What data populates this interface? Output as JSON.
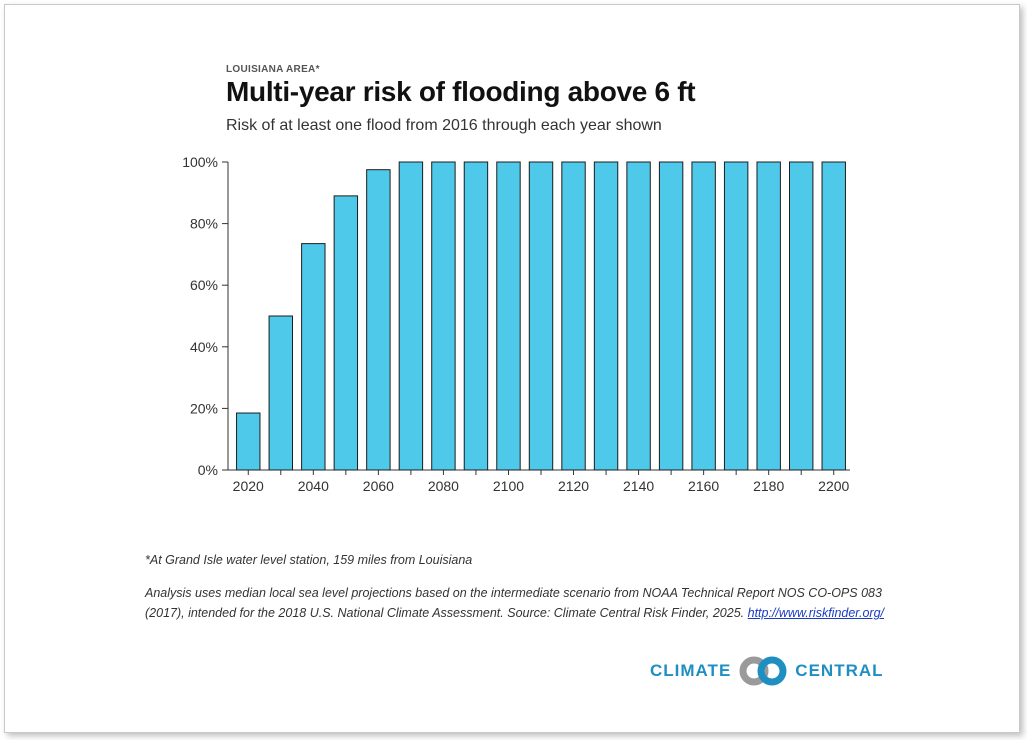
{
  "header": {
    "kicker": "LOUISIANA AREA*",
    "title": "Multi-year risk of flooding above 6 ft",
    "subtitle": "Risk of at least one flood from 2016 through each year shown"
  },
  "chart_data": {
    "type": "bar",
    "title": "Multi-year risk of flooding above 6 ft",
    "subtitle": "Risk of at least one flood from 2016 through each year shown",
    "xlabel": "",
    "ylabel": "",
    "categories": [
      2020,
      2030,
      2040,
      2050,
      2060,
      2070,
      2080,
      2090,
      2100,
      2110,
      2120,
      2130,
      2140,
      2150,
      2160,
      2170,
      2180,
      2190,
      2200
    ],
    "values": [
      18.5,
      50,
      73.5,
      89,
      97.5,
      100,
      100,
      100,
      100,
      100,
      100,
      100,
      100,
      100,
      100,
      100,
      100,
      100,
      100
    ],
    "unit": "%",
    "ylim": [
      0,
      100
    ],
    "yticks": [
      "0%",
      "20%",
      "40%",
      "60%",
      "80%",
      "100%"
    ],
    "xtick_labels": [
      "2020",
      "2040",
      "2060",
      "2080",
      "2100",
      "2120",
      "2140",
      "2160",
      "2180",
      "2200"
    ],
    "bar_color": "#4ec9ea",
    "bar_stroke": "#1c1c1c",
    "grid": false,
    "legend": "none"
  },
  "notes": {
    "footnote": "*At Grand Isle water level station, 159 miles from Louisiana",
    "source": "Analysis uses median local sea level projections based on the intermediate scenario from NOAA Technical Report NOS CO-OPS 083 (2017), intended for the 2018 U.S. National Climate Assessment. Source: Climate Central Risk Finder, 2025.",
    "link_text": "http://www.riskfinder.org/"
  },
  "logo": {
    "left_word": "CLIMATE",
    "right_word": "CENTRAL",
    "icon": "climate-central-logo-icon",
    "color": "#1f8fc2"
  }
}
